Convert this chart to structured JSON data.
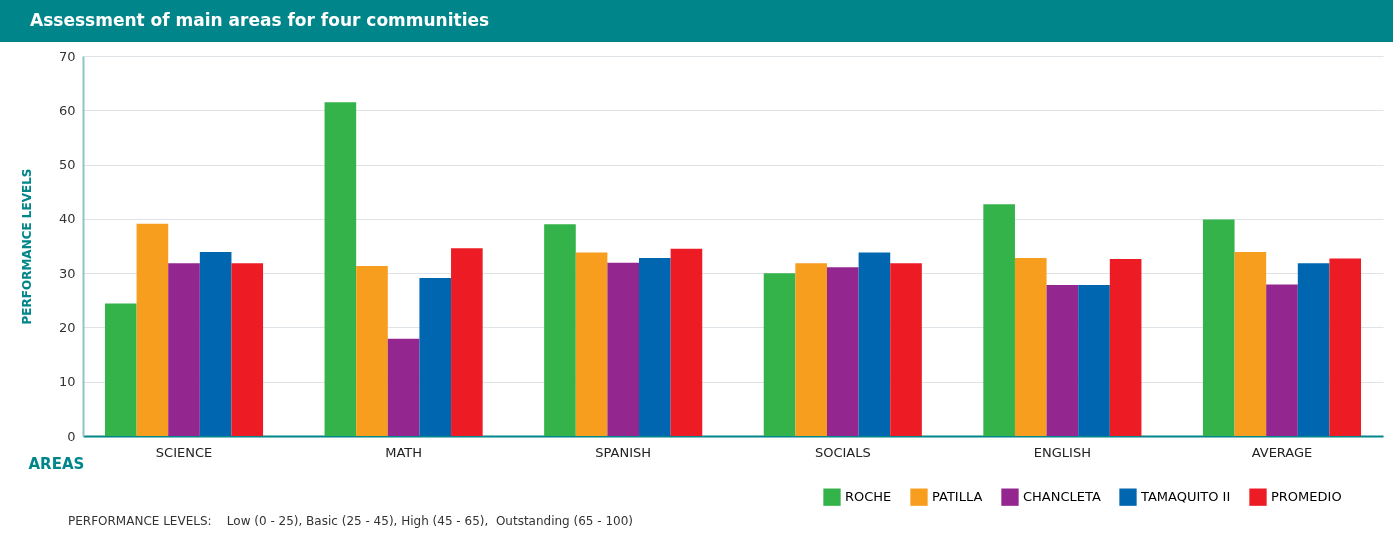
{
  "chart_data": {
    "type": "bar",
    "title": "Assessment of main areas for four communities",
    "xlabel": "AREAS",
    "ylabel": "PERFORMANCE LEVELS",
    "categories": [
      "SCIENCE",
      "MATH",
      "SPANISH",
      "SOCIALS",
      "ENGLISH",
      "AVERAGE"
    ],
    "series": [
      {
        "name": "ROCHE",
        "color": "#33b34a",
        "values": [
          24.4,
          61.5,
          39,
          30,
          42.7,
          39.9
        ]
      },
      {
        "name": "PATILLA",
        "color": "#f79e1e",
        "values": [
          39.1,
          31.3,
          33.8,
          31.8,
          32.8,
          33.9
        ]
      },
      {
        "name": "CHANCLETA",
        "color": "#93268f",
        "values": [
          31.8,
          17.9,
          31.9,
          31.1,
          27.8,
          27.9
        ]
      },
      {
        "name": "TAMAQUITO II",
        "color": "#0066b0",
        "values": [
          33.9,
          29.1,
          32.8,
          33.8,
          27.8,
          31.8
        ]
      },
      {
        "name": "PROMEDIO",
        "color": "#ed1c24",
        "values": [
          31.8,
          34.6,
          34.5,
          31.8,
          32.6,
          32.7
        ]
      }
    ],
    "ylim": [
      0,
      70
    ],
    "yticks": [
      0,
      10,
      20,
      30,
      40,
      50,
      60,
      70
    ],
    "grid": "y",
    "legend": "bottom right",
    "annotations": [
      "PERFORMANCE LEVELS:    Low (0 - 25), Basic (25 - 45), High (45 - 65),  Outstanding (65 - 100)"
    ]
  }
}
